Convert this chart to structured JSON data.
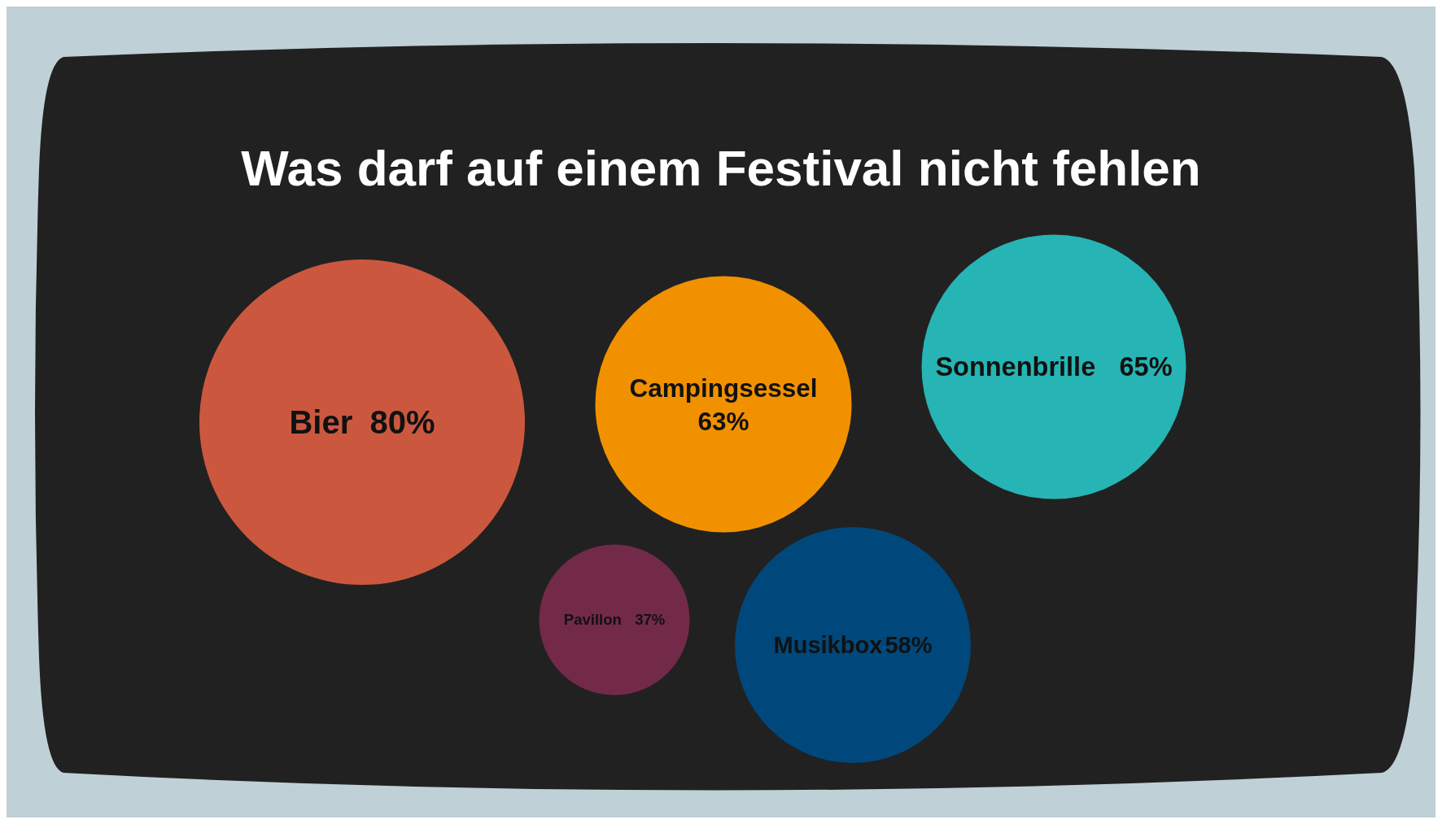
{
  "chart_data": {
    "type": "other",
    "title": "Was darf auf einem Festival nicht fehlen",
    "categories": [
      "Bier",
      "Campingsessel",
      "Sonnenbrille",
      "Pavillon",
      "Musikbox"
    ],
    "values": [
      80,
      63,
      65,
      37,
      58
    ],
    "value_labels": [
      "80%",
      "63%",
      "65%",
      "37%",
      "58%"
    ],
    "colors": [
      "#cb583e",
      "#f29100",
      "#27b4b4",
      "#722a48",
      "#00487c"
    ]
  }
}
